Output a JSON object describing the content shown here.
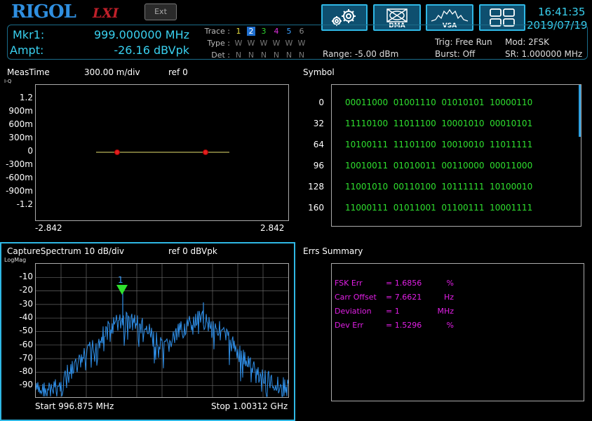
{
  "header": {
    "logo": "RIGOL",
    "lxi": "LXI",
    "ext_button": "Ext",
    "dma_label": "DMA",
    "vsa_label": "VSA",
    "time": "16:41:35",
    "date": "2019/07/19"
  },
  "marker": {
    "label": "Mkr1:",
    "freq": "999.000000 MHz",
    "ampt_label": "Ampt:",
    "ampt": "-26.16 dBVpk"
  },
  "trace": {
    "trace_label": "Trace :",
    "type_label": "Type :",
    "det_label": "Det :",
    "numbers": [
      "1",
      "2",
      "3",
      "4",
      "5",
      "6"
    ],
    "colors": [
      "#e8e040",
      "#ffffff",
      "#2fd02f",
      "#e030e0",
      "#3aa0ff",
      "#888888"
    ],
    "types": [
      "W",
      "W",
      "W",
      "W",
      "W",
      "W"
    ],
    "dets": [
      "N",
      "N",
      "N",
      "N",
      "N",
      "N"
    ]
  },
  "status": {
    "range": "Range: -5.00 dBm",
    "trig": "Trig: Free Run",
    "burst": "Burst: Off",
    "mod": "Mod: 2FSK",
    "sr": "SR: 1.000000 MHz"
  },
  "meas": {
    "title": "MeasTime",
    "scale": "300.00 m/div",
    "ref": "ref 0",
    "corner": "I-Q",
    "yticks": [
      "1.2",
      "900m",
      "600m",
      "300m",
      "0",
      "-300m",
      "-600m",
      "-900m",
      "-1.2"
    ],
    "xmin": "-2.842",
    "xmax": "2.842"
  },
  "symbol": {
    "title": "Symbol",
    "rows": [
      {
        "idx": "0",
        "vals": "00011000  01001110  01010101  10000110"
      },
      {
        "idx": "32",
        "vals": "11110100  11011100  10001010  00010101"
      },
      {
        "idx": "64",
        "vals": "10100111  11101100  10010010  11011111"
      },
      {
        "idx": "96",
        "vals": "10010011  01010011  00110000  00011000"
      },
      {
        "idx": "128",
        "vals": "11001010  00110100  10111111  10100010"
      },
      {
        "idx": "160",
        "vals": "11000111  01011001  01100111  10001111"
      }
    ]
  },
  "spectrum": {
    "title": "CaptureSpectrum",
    "scale": "10 dB/div",
    "ref": "ref 0 dBVpk",
    "corner": "LogMag",
    "yticks": [
      "-10",
      "-20",
      "-30",
      "-40",
      "-50",
      "-60",
      "-70",
      "-80",
      "-90"
    ],
    "start": "Start 996.875 MHz",
    "stop": "Stop 1.00312 GHz",
    "marker_num": "1"
  },
  "errs": {
    "title": "Errs Summary",
    "rows": [
      {
        "name": "FSK Err",
        "val": "= 1.6856",
        "unit": "%"
      },
      {
        "name": "Carr Offset",
        "val": "= 7.6621",
        "unit": "Hz"
      },
      {
        "name": "Deviation",
        "val": "= 1",
        "unit": "MHz"
      },
      {
        "name": "Dev Err",
        "val": "= 1.5296",
        "unit": "%"
      }
    ]
  }
}
